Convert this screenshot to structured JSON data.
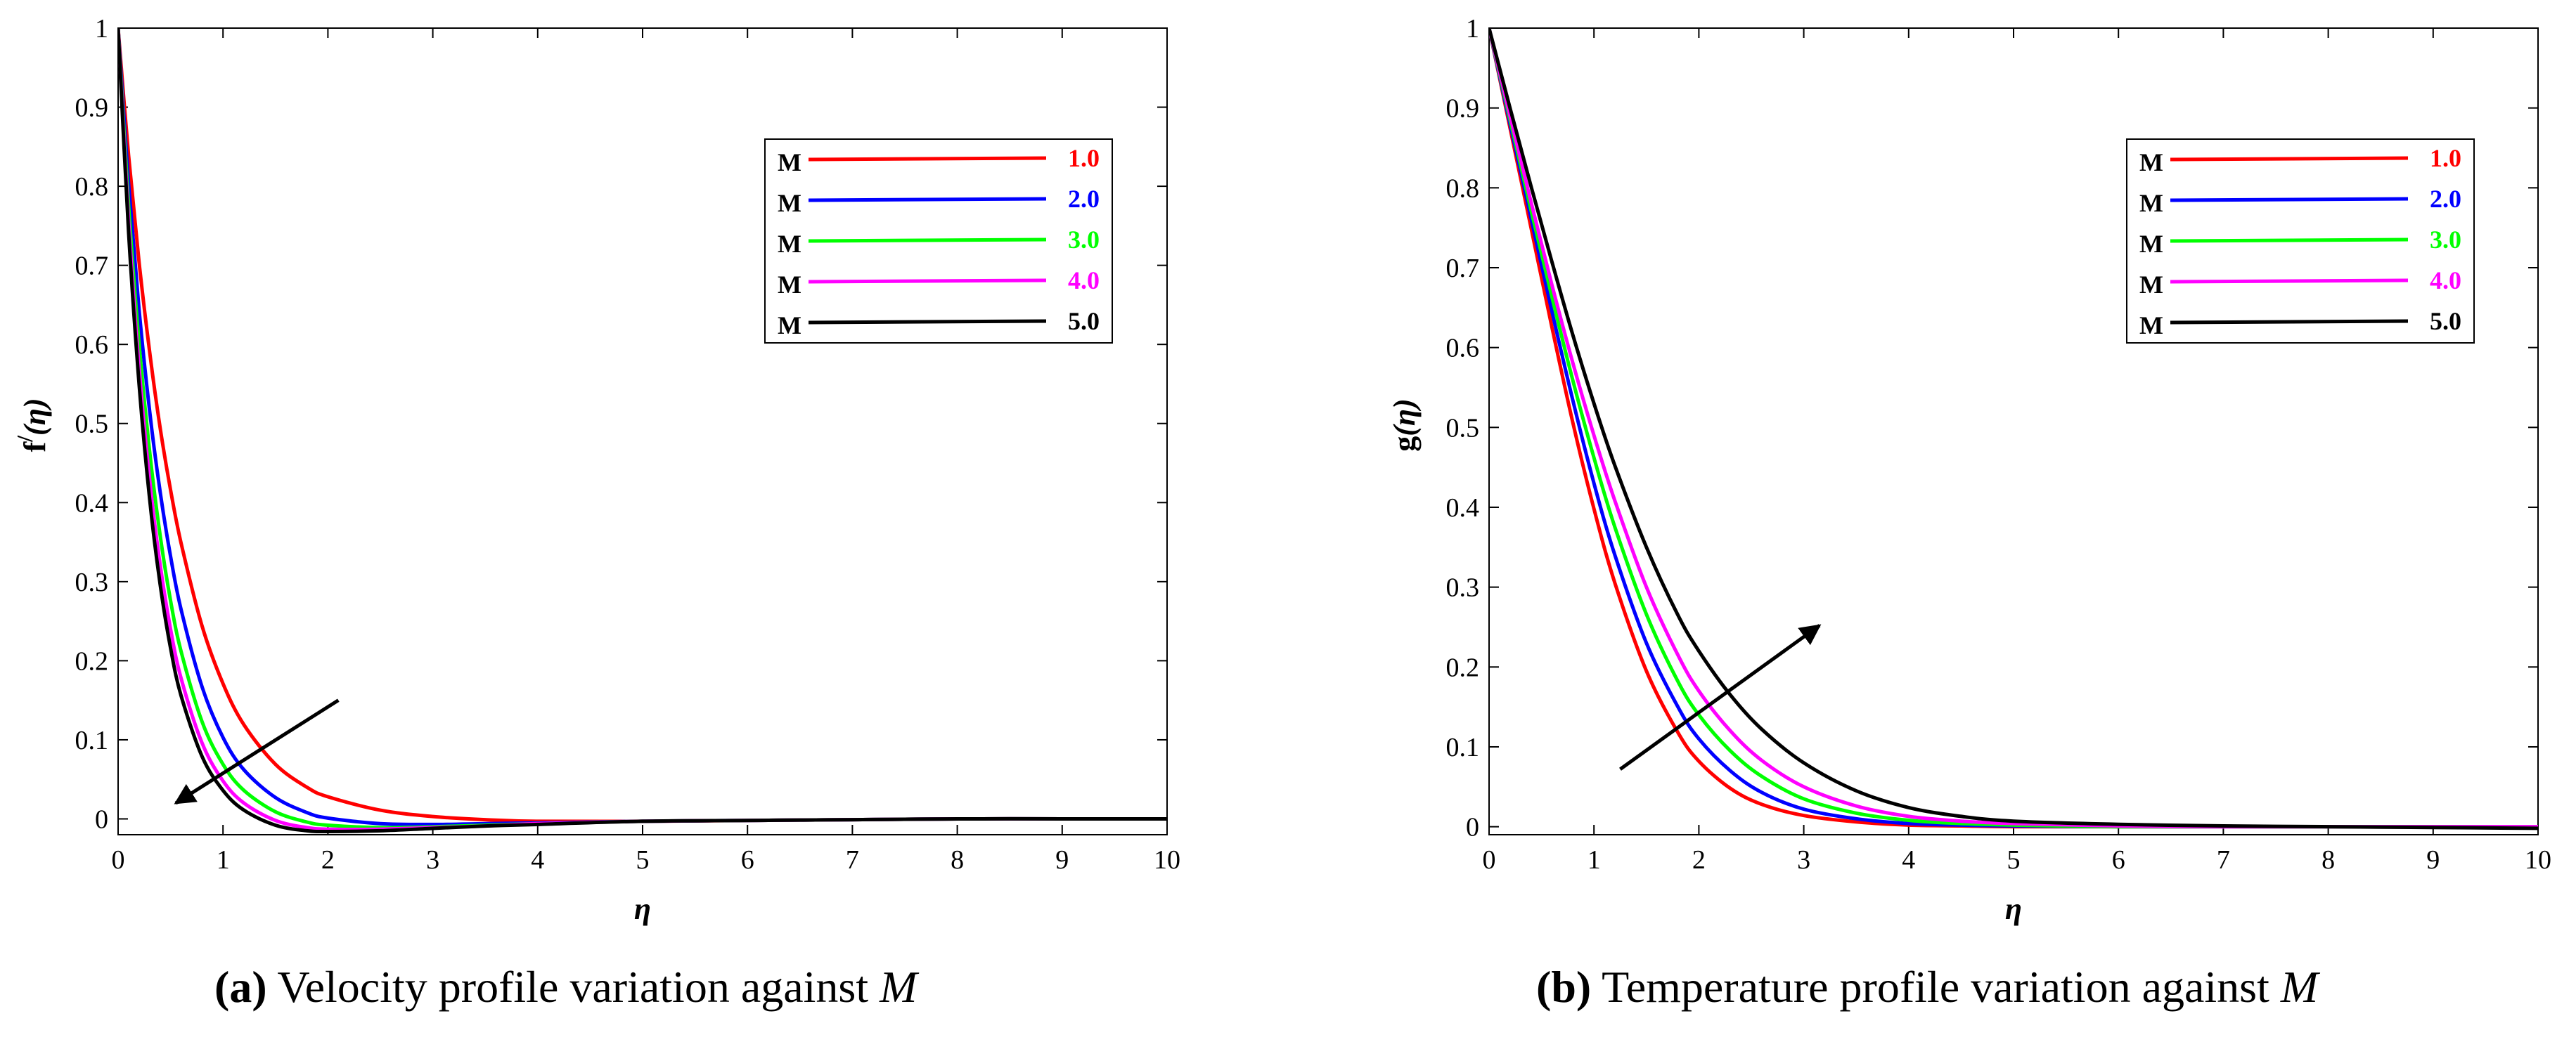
{
  "chart_data": [
    {
      "type": "line",
      "id": "a",
      "title": "",
      "xlabel": "η",
      "ylabel_main": "f",
      "ylabel_prime": "/",
      "ylabel_arg": "(η)",
      "xlim": [
        0,
        10
      ],
      "ylim": [
        -0.02,
        1
      ],
      "xticks": [
        "0",
        "1",
        "2",
        "3",
        "4",
        "5",
        "6",
        "7",
        "8",
        "9",
        "10"
      ],
      "yticks": [
        "0",
        "0.1",
        "0.2",
        "0.3",
        "0.4",
        "0.5",
        "0.6",
        "0.7",
        "0.8",
        "0.9",
        "1"
      ],
      "x": [
        0,
        0.1,
        0.2,
        0.3,
        0.4,
        0.5,
        0.6,
        0.8,
        1.0,
        1.2,
        1.5,
        1.8,
        2.0,
        2.5,
        3.0,
        3.5,
        4.0,
        5.0,
        6.0,
        7.0,
        8.0,
        9.0,
        10.0
      ],
      "series": [
        {
          "name": "1.0",
          "color": "#ff0000",
          "values": [
            1.0,
            0.839,
            0.704,
            0.591,
            0.495,
            0.416,
            0.349,
            0.244,
            0.171,
            0.119,
            0.069,
            0.04,
            0.028,
            0.011,
            0.003,
            -0.001,
            -0.003,
            -0.003,
            -0.002,
            -0.001,
            0.0,
            0.0,
            0.0
          ]
        },
        {
          "name": "2.0",
          "color": "#0000ff",
          "values": [
            1.0,
            0.803,
            0.644,
            0.516,
            0.414,
            0.332,
            0.265,
            0.167,
            0.103,
            0.062,
            0.027,
            0.008,
            0.001,
            -0.006,
            -0.007,
            -0.006,
            -0.005,
            -0.003,
            -0.002,
            -0.001,
            0.0,
            0.0,
            0.0
          ]
        },
        {
          "name": "3.0",
          "color": "#00ff00",
          "values": [
            1.0,
            0.776,
            0.601,
            0.465,
            0.359,
            0.276,
            0.212,
            0.123,
            0.069,
            0.036,
            0.009,
            -0.004,
            -0.008,
            -0.011,
            -0.01,
            -0.008,
            -0.006,
            -0.003,
            -0.002,
            -0.001,
            0.0,
            0.0,
            0.0
          ]
        },
        {
          "name": "4.0",
          "color": "#ff00ff",
          "values": [
            1.0,
            0.756,
            0.57,
            0.429,
            0.322,
            0.24,
            0.178,
            0.096,
            0.048,
            0.02,
            -0.002,
            -0.011,
            -0.013,
            -0.013,
            -0.011,
            -0.009,
            -0.006,
            -0.003,
            -0.002,
            -0.001,
            0.0,
            0.0,
            0.0
          ]
        },
        {
          "name": "5.0",
          "color": "#000000",
          "values": [
            1.0,
            0.742,
            0.55,
            0.405,
            0.297,
            0.216,
            0.156,
            0.079,
            0.036,
            0.011,
            -0.008,
            -0.015,
            -0.016,
            -0.015,
            -0.012,
            -0.009,
            -0.007,
            -0.003,
            -0.002,
            -0.001,
            0.0,
            0.0,
            0.0
          ]
        }
      ],
      "legend": {
        "placement": "top-right",
        "prefix": "M"
      },
      "annotation": {
        "type": "arrow",
        "direction": "down-left",
        "from": [
          2.1,
          0.15
        ],
        "to": [
          0.55,
          0.02
        ]
      }
    },
    {
      "type": "line",
      "id": "b",
      "title": "",
      "xlabel": "η",
      "ylabel_main": "g",
      "ylabel_prime": "",
      "ylabel_arg": "(η)",
      "xlim": [
        0,
        10
      ],
      "ylim": [
        -0.01,
        1
      ],
      "xticks": [
        "0",
        "1",
        "2",
        "3",
        "4",
        "5",
        "6",
        "7",
        "8",
        "9",
        "10"
      ],
      "yticks": [
        "0",
        "0.1",
        "0.2",
        "0.3",
        "0.4",
        "0.5",
        "0.6",
        "0.7",
        "0.8",
        "0.9",
        "1"
      ],
      "x": [
        0,
        0.2,
        0.4,
        0.6,
        0.8,
        1.0,
        1.2,
        1.5,
        1.8,
        2.0,
        2.3,
        2.6,
        3.0,
        3.5,
        4.0,
        4.5,
        5.0,
        6.0,
        7.0,
        8.0,
        9.0,
        10.0
      ],
      "series": [
        {
          "name": "1.0",
          "color": "#ff0000",
          "values": [
            1.0,
            0.875,
            0.75,
            0.625,
            0.505,
            0.398,
            0.305,
            0.195,
            0.118,
            0.082,
            0.048,
            0.028,
            0.014,
            0.006,
            0.002,
            0.001,
            0.0,
            0.0,
            0.0,
            0.0,
            0.0,
            0.0
          ]
        },
        {
          "name": "2.0",
          "color": "#0000ff",
          "values": [
            1.0,
            0.88,
            0.762,
            0.645,
            0.533,
            0.43,
            0.34,
            0.23,
            0.15,
            0.11,
            0.07,
            0.043,
            0.022,
            0.01,
            0.004,
            0.002,
            0.001,
            0.0,
            0.0,
            0.0,
            0.0,
            0.0
          ]
        },
        {
          "name": "3.0",
          "color": "#00ff00",
          "values": [
            1.0,
            0.885,
            0.772,
            0.663,
            0.558,
            0.462,
            0.375,
            0.266,
            0.182,
            0.14,
            0.095,
            0.063,
            0.035,
            0.017,
            0.008,
            0.004,
            0.002,
            0.0,
            0.0,
            0.0,
            0.0,
            0.0
          ]
        },
        {
          "name": "4.0",
          "color": "#ff00ff",
          "values": [
            1.0,
            0.89,
            0.782,
            0.678,
            0.58,
            0.49,
            0.408,
            0.3,
            0.215,
            0.17,
            0.12,
            0.083,
            0.05,
            0.026,
            0.013,
            0.007,
            0.004,
            0.001,
            0.0,
            0.0,
            0.0,
            0.0
          ]
        },
        {
          "name": "5.0",
          "color": "#000000",
          "values": [
            1.0,
            0.9,
            0.802,
            0.707,
            0.615,
            0.53,
            0.452,
            0.35,
            0.265,
            0.22,
            0.165,
            0.122,
            0.08,
            0.045,
            0.024,
            0.013,
            0.007,
            0.003,
            0.001,
            0.0,
            -0.001,
            -0.002
          ]
        }
      ],
      "legend": {
        "placement": "top-right",
        "prefix": "M"
      },
      "annotation": {
        "type": "arrow",
        "direction": "up-right",
        "from": [
          1.25,
          0.072
        ],
        "to": [
          3.15,
          0.252
        ]
      }
    }
  ],
  "captions": [
    {
      "label": "(a)",
      "text_before": " Velocity profile variation against ",
      "variable": "M"
    },
    {
      "label": "(b)",
      "text_before": " Temperature profile variation against ",
      "variable": "M"
    }
  ]
}
